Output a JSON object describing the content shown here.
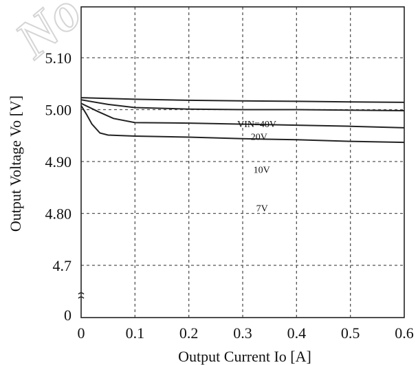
{
  "watermark": "No",
  "chart_data": {
    "type": "line",
    "title": "",
    "xlabel": "Output Current  Io [A]",
    "ylabel": "Output Voltage  Vo [V]",
    "xlim": [
      0,
      0.6
    ],
    "ylim_display": [
      4.66,
      5.2
    ],
    "broken_y_axis": true,
    "x_ticks": [
      "0",
      "0.1",
      "0.2",
      "0.3",
      "0.4",
      "0.5",
      "0.6"
    ],
    "x_tick_values": [
      0,
      0.1,
      0.2,
      0.3,
      0.4,
      0.5,
      0.6
    ],
    "y_ticks": [
      "5.10",
      "5.00",
      "4.90",
      "4.80",
      "4.7",
      "0"
    ],
    "y_tick_values": [
      5.1,
      5.0,
      4.9,
      4.8,
      4.7,
      null
    ],
    "grid": true,
    "series": [
      {
        "name": "VIN=40V",
        "label_pos": [
          0.29,
          4.966
        ],
        "x": [
          0,
          0.1,
          0.2,
          0.3,
          0.4,
          0.5,
          0.6
        ],
        "values": [
          5.023,
          5.02,
          5.018,
          5.017,
          5.016,
          5.015,
          5.014
        ]
      },
      {
        "name": "20V",
        "label_pos": [
          0.315,
          4.942
        ],
        "x": [
          0,
          0.05,
          0.1,
          0.2,
          0.3,
          0.4,
          0.5,
          0.6
        ],
        "values": [
          5.019,
          5.01,
          5.004,
          5.001,
          5.0,
          5.0,
          4.999,
          4.998
        ]
      },
      {
        "name": "10V",
        "label_pos": [
          0.32,
          4.878
        ],
        "x": [
          0,
          0.03,
          0.06,
          0.1,
          0.2,
          0.3,
          0.4,
          0.5,
          0.6
        ],
        "values": [
          5.012,
          4.997,
          4.983,
          4.975,
          4.974,
          4.972,
          4.97,
          4.968,
          4.965
        ]
      },
      {
        "name": "7V",
        "label_pos": [
          0.325,
          4.804
        ],
        "x": [
          0,
          0.01,
          0.02,
          0.035,
          0.05,
          0.1,
          0.2,
          0.3,
          0.4,
          0.5,
          0.6
        ],
        "values": [
          5.008,
          4.991,
          4.972,
          4.955,
          4.951,
          4.949,
          4.947,
          4.944,
          4.942,
          4.939,
          4.937
        ]
      }
    ]
  }
}
